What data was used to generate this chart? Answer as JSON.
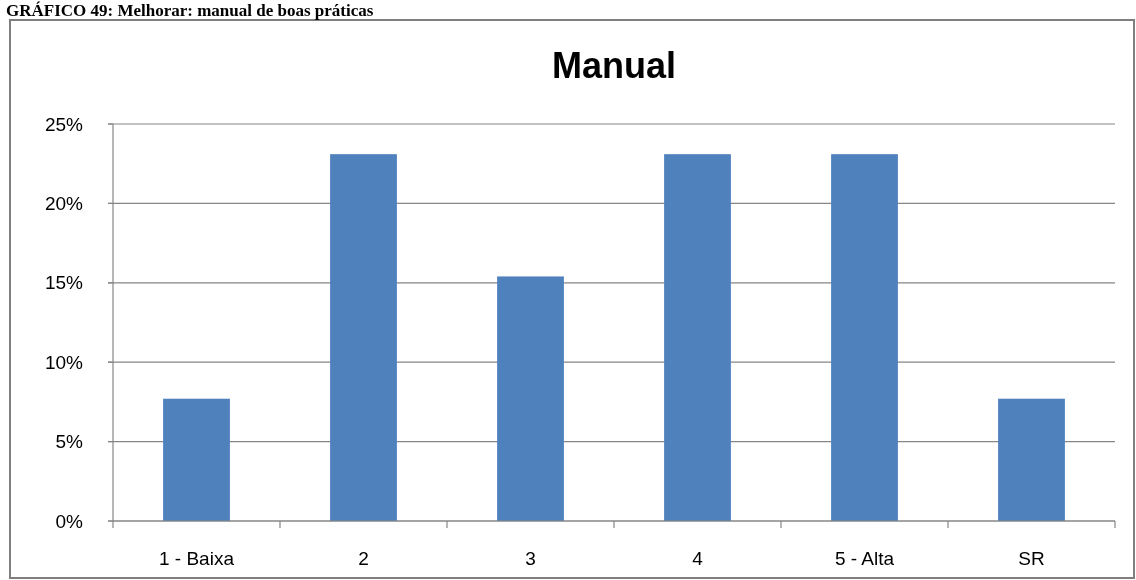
{
  "chart_data": {
    "type": "bar",
    "title": "Manual",
    "annotations": [
      "GRÁFICO 49: Melhorar: manual de boas práticas"
    ],
    "categories": [
      "1 - Baixa",
      "2",
      "3",
      "4",
      "5 - Alta",
      "SR"
    ],
    "values": [
      7.7,
      23.1,
      15.4,
      23.1,
      23.1,
      7.7
    ],
    "color": "#4f81bd",
    "ylim": [
      0,
      25
    ],
    "yticks": [
      {
        "value": 0,
        "label": "0%"
      },
      {
        "value": 5,
        "label": "5%"
      },
      {
        "value": 10,
        "label": "10%"
      },
      {
        "value": 15,
        "label": "15%"
      },
      {
        "value": 20,
        "label": "20%"
      },
      {
        "value": 25,
        "label": "25%"
      }
    ],
    "grid": "y"
  }
}
